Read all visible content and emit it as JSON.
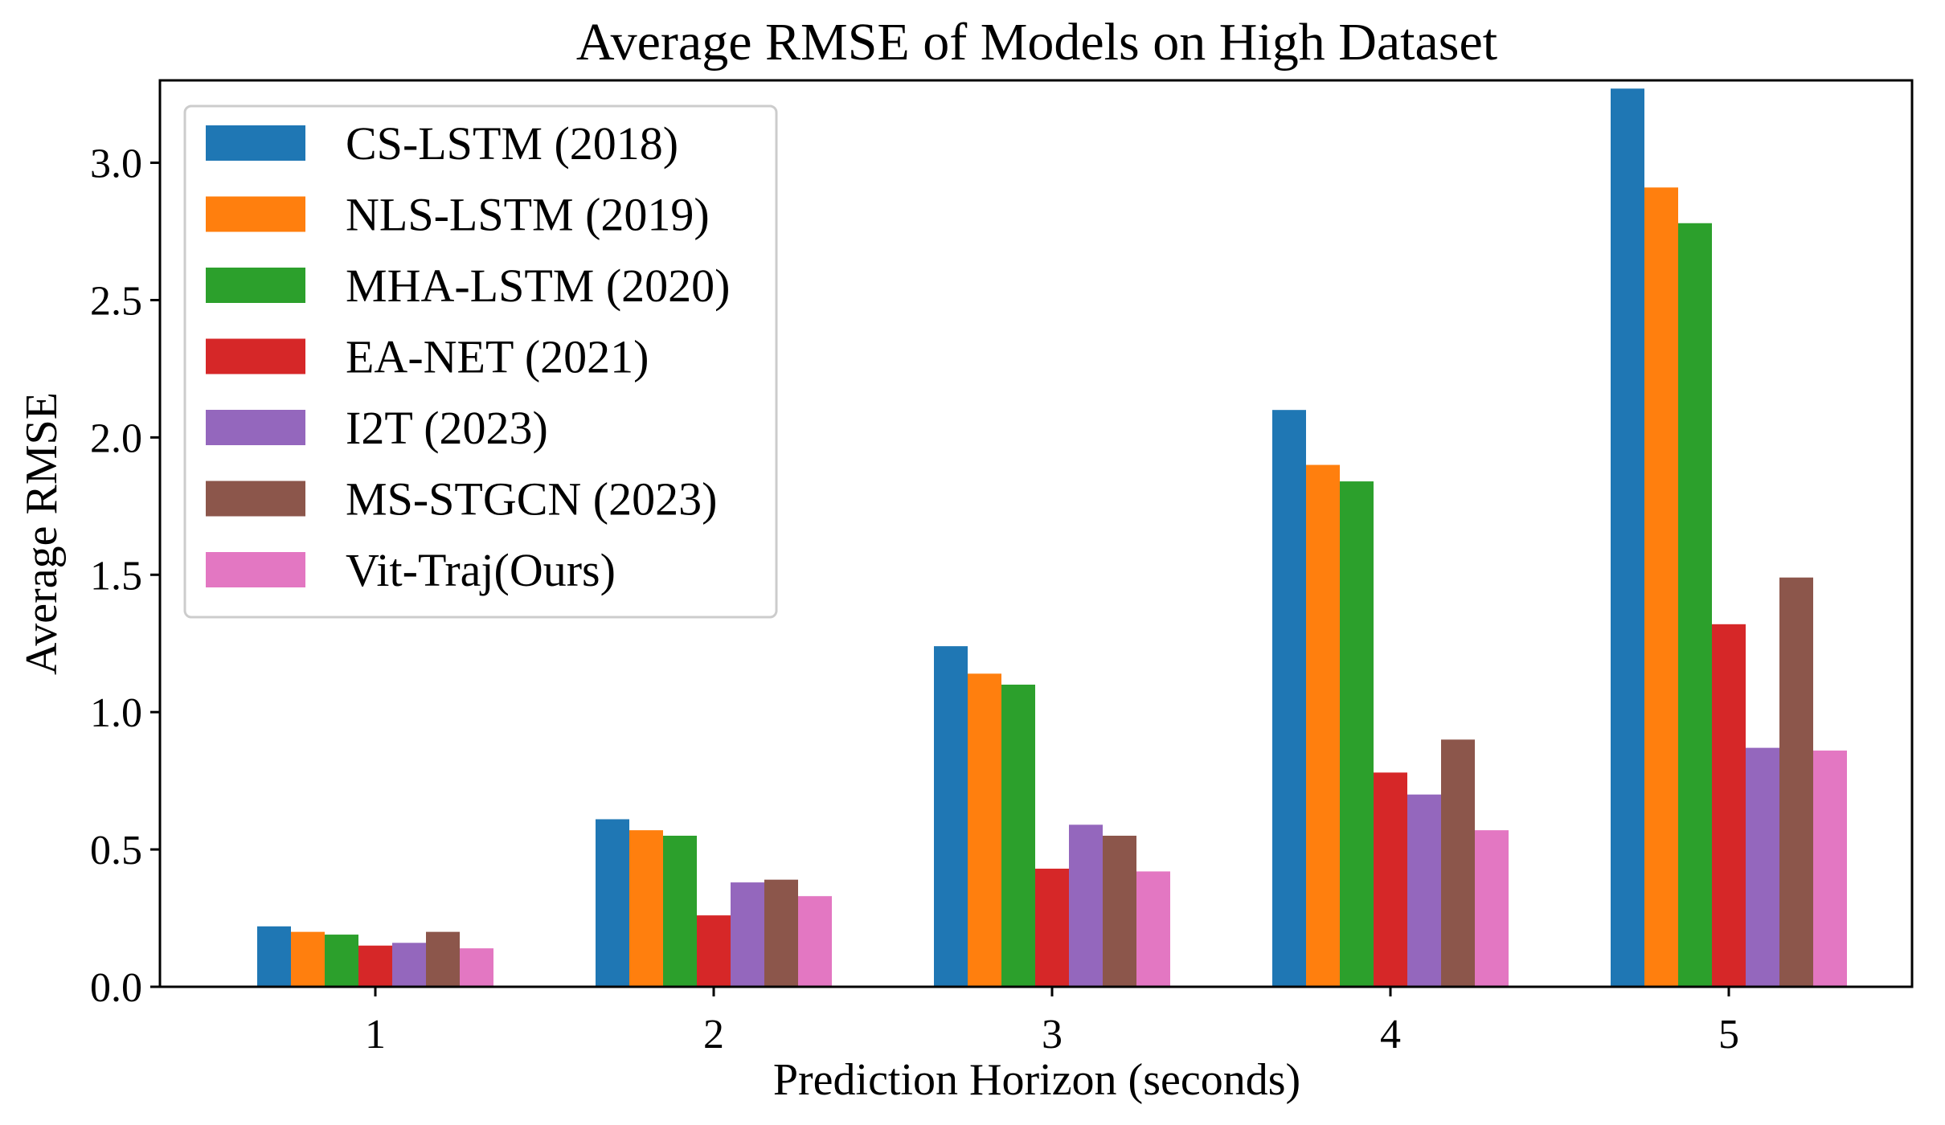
{
  "chart_data": {
    "type": "bar",
    "title": "Average RMSE of Models on High Dataset",
    "xlabel": "Prediction Horizon (seconds)",
    "ylabel": "Average RMSE",
    "categories": [
      "1",
      "2",
      "3",
      "4",
      "5"
    ],
    "ylim": [
      0,
      3.3
    ],
    "yticks": [
      "0.0",
      "0.5",
      "1.0",
      "1.5",
      "2.0",
      "2.5",
      "3.0"
    ],
    "grid": false,
    "legend_position": "top-left",
    "series": [
      {
        "name": "CS-LSTM (2018)",
        "color": "#1f77b4",
        "values": [
          0.22,
          0.61,
          1.24,
          2.1,
          3.27
        ]
      },
      {
        "name": "NLS-LSTM (2019)",
        "color": "#ff7f0e",
        "values": [
          0.2,
          0.57,
          1.14,
          1.9,
          2.91
        ]
      },
      {
        "name": "MHA-LSTM (2020)",
        "color": "#2ca02c",
        "values": [
          0.19,
          0.55,
          1.1,
          1.84,
          2.78
        ]
      },
      {
        "name": "EA-NET (2021)",
        "color": "#d62728",
        "values": [
          0.15,
          0.26,
          0.43,
          0.78,
          1.32
        ]
      },
      {
        "name": "I2T (2023)",
        "color": "#9467bd",
        "values": [
          0.16,
          0.38,
          0.59,
          0.7,
          0.87
        ]
      },
      {
        "name": "MS-STGCN (2023)",
        "color": "#8c564b",
        "values": [
          0.2,
          0.39,
          0.55,
          0.9,
          1.49
        ]
      },
      {
        "name": "Vit-Traj(Ours)",
        "color": "#e377c2",
        "values": [
          0.14,
          0.33,
          0.42,
          0.57,
          0.86
        ]
      }
    ]
  }
}
